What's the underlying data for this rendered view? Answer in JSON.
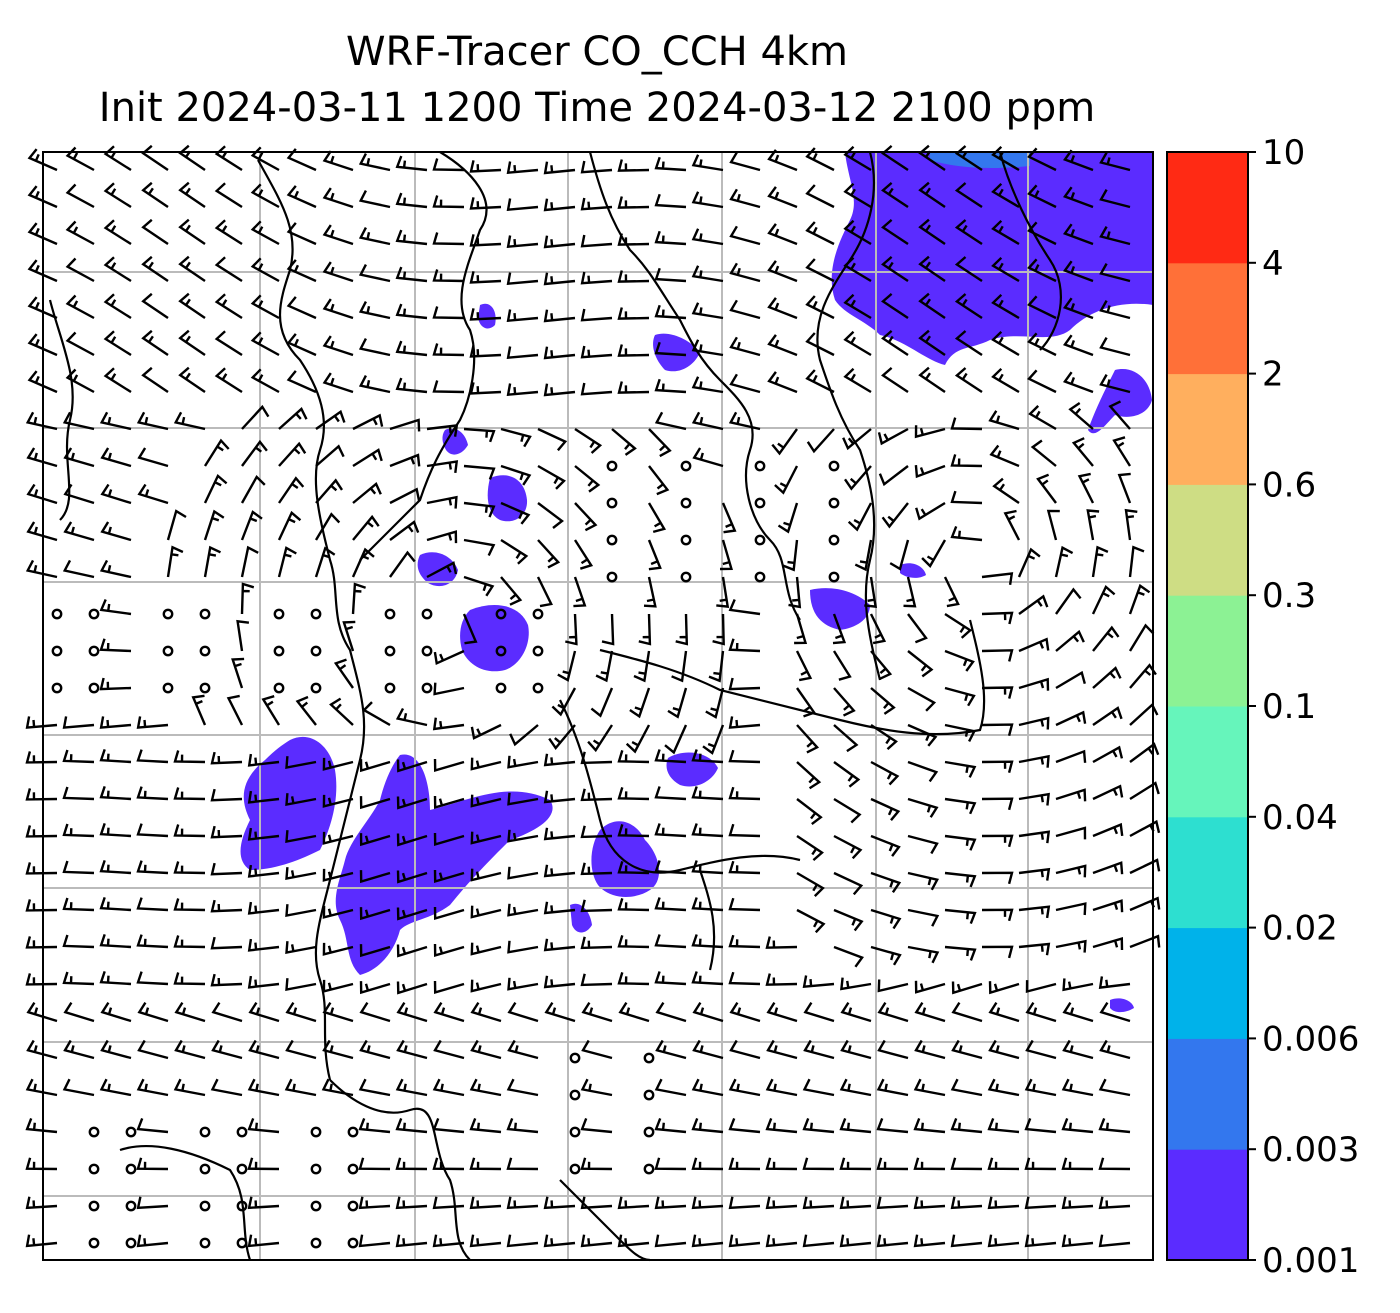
{
  "title": {
    "line1": "WRF-Tracer CO_CCH 4km",
    "line2": "Init 2024-03-11 1200 Time 2024-03-12 2100 ppm"
  },
  "colorbar": {
    "levels": [
      "0.001",
      "0.003",
      "0.006",
      "0.02",
      "0.04",
      "0.1",
      "0.3",
      "0.6",
      "2",
      "4",
      "10"
    ],
    "colors": [
      "#5b2cff",
      "#3377ee",
      "#00b2ea",
      "#2ddfd0",
      "#66f5bb",
      "#8cf294",
      "#cedd84",
      "#ffaf5e",
      "#ff7038",
      "#ff2a14"
    ]
  },
  "map": {
    "plume_color": "#5b2cff",
    "deep_color": "#3377ee",
    "gridline_color": "#bbbbbb",
    "barb_color": "#000000"
  }
}
